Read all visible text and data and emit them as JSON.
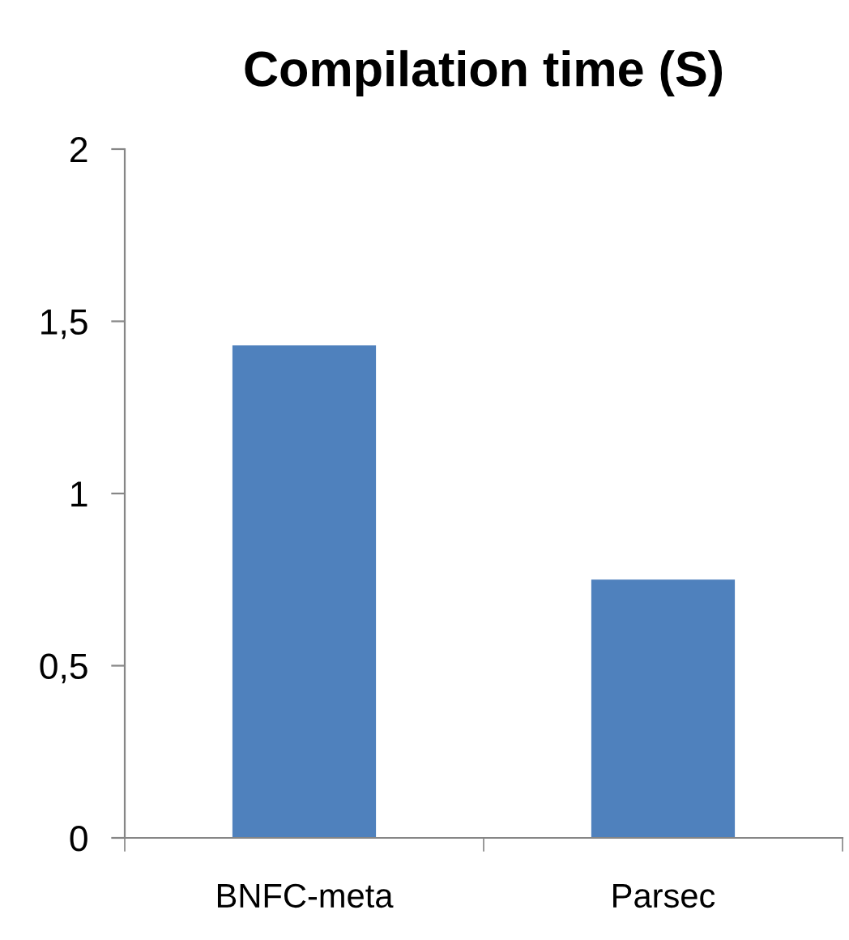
{
  "chart_data": {
    "type": "bar",
    "title": "Compilation time (S)",
    "categories": [
      "BNFC-meta",
      "Parsec"
    ],
    "values": [
      1.43,
      0.75
    ],
    "color": "#4f81bd",
    "ylim": [
      0,
      2
    ],
    "yticks": [
      0,
      {
        "value": 0.5,
        "label": "0,5"
      },
      1,
      {
        "value": 1.5,
        "label": "1,5"
      },
      2
    ],
    "grid": false,
    "legend": false
  }
}
